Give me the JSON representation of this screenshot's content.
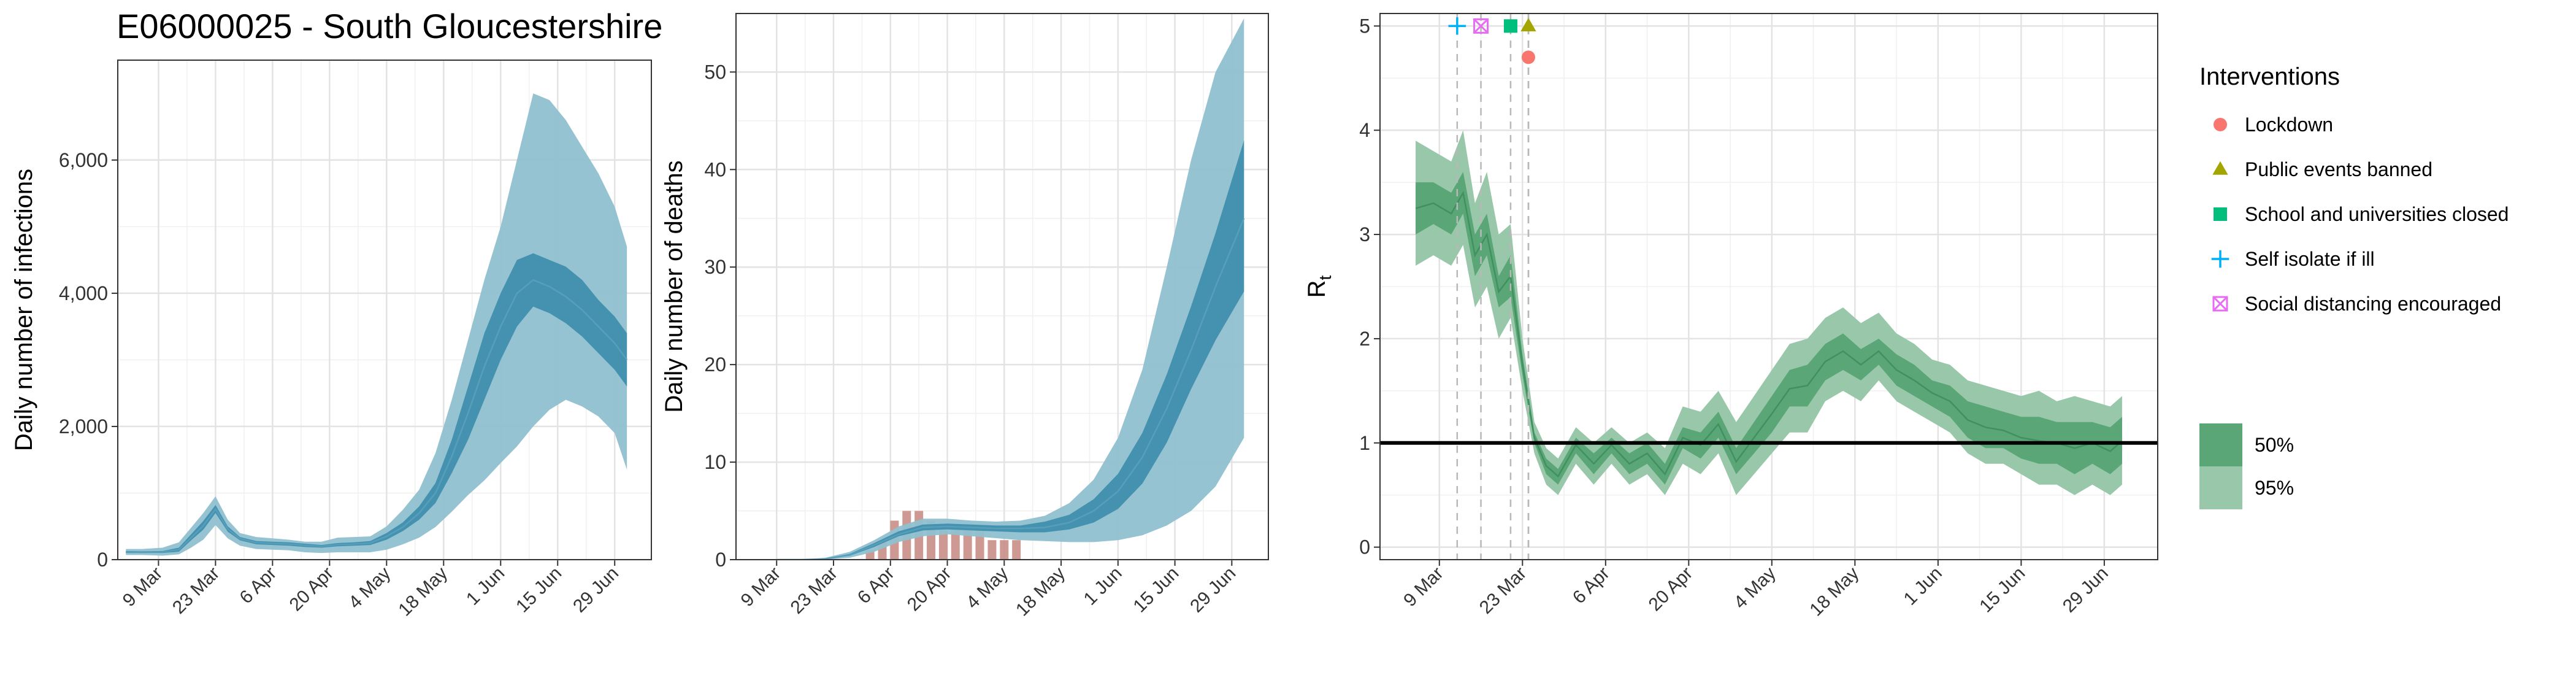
{
  "figure_title": "E06000025 - South Gloucestershire",
  "colors": {
    "band_outer_blue": "#8fc0d0",
    "band_inner_blue": "#3f8fad",
    "median_blue": "#5aa0bd",
    "deaths_bar": "#c98e86",
    "band_outer_green": "#98c8a9",
    "band_inner_green": "#5aa677",
    "median_green": "#3e8f5d",
    "lockdown": "#f8766d",
    "public_events": "#a3a500",
    "schools": "#00bf7d",
    "self_isolate": "#00b0f6",
    "social_distancing": "#e76bf3"
  },
  "chart_data": [
    {
      "type": "area",
      "ylabel": "Daily number of infections",
      "xlabel": "",
      "x_ticks": [
        "9 Mar",
        "23 Mar",
        "6 Apr",
        "20 Apr",
        "4 May",
        "18 May",
        "1 Jun",
        "15 Jun",
        "29 Jun"
      ],
      "x_range": [
        "2020-02-28",
        "2020-07-08"
      ],
      "y_ticks": [
        "0",
        "2,000",
        "4,000",
        "6,000"
      ],
      "y_tick_values": [
        0,
        2000,
        4000,
        6000
      ],
      "ylim": [
        0,
        7500
      ],
      "grid": true,
      "series": [
        {
          "x": [
            "2020-03-01",
            "2020-03-05",
            "2020-03-10",
            "2020-03-14",
            "2020-03-17",
            "2020-03-20",
            "2020-03-23",
            "2020-03-26",
            "2020-03-29",
            "2020-04-02",
            "2020-04-06",
            "2020-04-10",
            "2020-04-14",
            "2020-04-18",
            "2020-04-22",
            "2020-04-26",
            "2020-04-30",
            "2020-05-04",
            "2020-05-08",
            "2020-05-12",
            "2020-05-16",
            "2020-05-20",
            "2020-05-24",
            "2020-05-28",
            "2020-06-01",
            "2020-06-05",
            "2020-06-09",
            "2020-06-13",
            "2020-06-17",
            "2020-06-21",
            "2020-06-25",
            "2020-06-29",
            "2020-07-02"
          ],
          "lower95": [
            70,
            70,
            60,
            80,
            180,
            300,
            520,
            320,
            210,
            160,
            150,
            140,
            110,
            100,
            110,
            110,
            110,
            150,
            230,
            330,
            490,
            720,
            970,
            1190,
            1450,
            1700,
            2000,
            2250,
            2400,
            2300,
            2150,
            1900,
            1350
          ],
          "upper95": [
            160,
            160,
            180,
            260,
            480,
            700,
            950,
            600,
            400,
            340,
            320,
            300,
            270,
            270,
            330,
            340,
            350,
            500,
            750,
            1050,
            1600,
            2400,
            3300,
            4200,
            5000,
            6000,
            7000,
            6900,
            6600,
            6200,
            5800,
            5300,
            4700
          ],
          "lower50": [
            100,
            100,
            100,
            120,
            290,
            450,
            700,
            420,
            290,
            230,
            220,
            210,
            190,
            180,
            200,
            210,
            220,
            300,
            430,
            600,
            850,
            1300,
            1800,
            2400,
            3000,
            3500,
            3800,
            3700,
            3550,
            3350,
            3100,
            2850,
            2600
          ],
          "upper50": [
            130,
            125,
            130,
            180,
            380,
            580,
            820,
            500,
            340,
            280,
            270,
            260,
            240,
            220,
            250,
            260,
            280,
            400,
            560,
            800,
            1150,
            1800,
            2600,
            3400,
            4000,
            4500,
            4600,
            4500,
            4400,
            4200,
            3900,
            3650,
            3400
          ],
          "median": [
            115,
            112,
            115,
            150,
            330,
            510,
            760,
            460,
            315,
            255,
            245,
            235,
            215,
            200,
            225,
            235,
            250,
            350,
            490,
            700,
            1000,
            1550,
            2200,
            2900,
            3500,
            4000,
            4200,
            4100,
            3950,
            3750,
            3500,
            3250,
            3000
          ]
        }
      ]
    },
    {
      "type": "area",
      "ylabel": "Daily number of deaths",
      "xlabel": "",
      "x_ticks": [
        "9 Mar",
        "23 Mar",
        "6 Apr",
        "20 Apr",
        "4 May",
        "18 May",
        "1 Jun",
        "15 Jun",
        "29 Jun"
      ],
      "x_range": [
        "2020-02-28",
        "2020-07-08"
      ],
      "y_ticks": [
        "0",
        "10",
        "20",
        "30",
        "40",
        "50"
      ],
      "y_tick_values": [
        0,
        10,
        20,
        30,
        40,
        50
      ],
      "ylim": [
        0,
        56
      ],
      "grid": true,
      "bars": {
        "x": [
          "2020-04-01",
          "2020-04-04",
          "2020-04-07",
          "2020-04-10",
          "2020-04-13",
          "2020-04-16",
          "2020-04-19",
          "2020-04-22",
          "2020-04-25",
          "2020-04-28",
          "2020-05-01",
          "2020-05-04",
          "2020-05-07"
        ],
        "values": [
          1,
          2,
          4,
          5,
          5,
          4,
          3,
          3,
          3,
          3,
          2,
          2,
          2
        ]
      },
      "series": [
        {
          "x": [
            "2020-03-09",
            "2020-03-15",
            "2020-03-21",
            "2020-03-27",
            "2020-04-02",
            "2020-04-08",
            "2020-04-14",
            "2020-04-20",
            "2020-04-26",
            "2020-05-02",
            "2020-05-08",
            "2020-05-14",
            "2020-05-20",
            "2020-05-26",
            "2020-06-01",
            "2020-06-07",
            "2020-06-13",
            "2020-06-19",
            "2020-06-25",
            "2020-07-02"
          ],
          "lower95": [
            0,
            0,
            0,
            0.2,
            0.8,
            1.8,
            2.4,
            2.6,
            2.4,
            2.2,
            2.0,
            1.9,
            1.8,
            1.8,
            2.0,
            2.5,
            3.5,
            5,
            7.5,
            12.5
          ],
          "upper95": [
            0,
            0,
            0.2,
            0.8,
            2.0,
            3.4,
            4.2,
            4.2,
            4.0,
            3.9,
            4.0,
            4.5,
            5.8,
            8.2,
            12.5,
            19.5,
            30,
            41,
            50,
            55.5
          ],
          "lower50": [
            0,
            0,
            0.05,
            0.4,
            1.3,
            2.4,
            3.0,
            3.1,
            3.0,
            2.9,
            2.8,
            2.8,
            3.1,
            3.8,
            5.2,
            7.8,
            12,
            17.5,
            22.5,
            27.5
          ],
          "upper50": [
            0,
            0,
            0.1,
            0.6,
            1.7,
            2.9,
            3.6,
            3.7,
            3.6,
            3.5,
            3.5,
            3.9,
            4.6,
            6.2,
            8.8,
            13,
            19,
            26,
            33.5,
            43
          ],
          "median": [
            0,
            0,
            0.08,
            0.5,
            1.5,
            2.6,
            3.3,
            3.4,
            3.3,
            3.2,
            3.2,
            3.3,
            3.8,
            5.0,
            7.0,
            10.5,
            15.5,
            21.5,
            28,
            35
          ]
        }
      ]
    },
    {
      "type": "area",
      "ylabel": "R",
      "ylabel_subscript": "t",
      "xlabel": "",
      "x_ticks": [
        "9 Mar",
        "23 Mar",
        "6 Apr",
        "20 Apr",
        "4 May",
        "18 May",
        "1 Jun",
        "15 Jun",
        "29 Jun"
      ],
      "x_range": [
        "2020-02-28",
        "2020-07-08"
      ],
      "y_ticks": [
        "0",
        "1",
        "2",
        "3",
        "4",
        "5"
      ],
      "y_tick_values": [
        0,
        1,
        2,
        3,
        4,
        5
      ],
      "ylim": [
        -0.12,
        5.12
      ],
      "grid": true,
      "reference_line": 1,
      "series": [
        {
          "x": [
            "2020-03-05",
            "2020-03-08",
            "2020-03-11",
            "2020-03-13",
            "2020-03-15",
            "2020-03-17",
            "2020-03-19",
            "2020-03-21",
            "2020-03-23",
            "2020-03-25",
            "2020-03-27",
            "2020-03-29",
            "2020-04-01",
            "2020-04-04",
            "2020-04-07",
            "2020-04-10",
            "2020-04-13",
            "2020-04-16",
            "2020-04-19",
            "2020-04-22",
            "2020-04-25",
            "2020-04-28",
            "2020-05-01",
            "2020-05-04",
            "2020-05-07",
            "2020-05-10",
            "2020-05-13",
            "2020-05-16",
            "2020-05-19",
            "2020-05-22",
            "2020-05-25",
            "2020-05-28",
            "2020-05-31",
            "2020-06-03",
            "2020-06-06",
            "2020-06-09",
            "2020-06-12",
            "2020-06-15",
            "2020-06-18",
            "2020-06-21",
            "2020-06-24",
            "2020-06-27",
            "2020-06-30",
            "2020-07-02"
          ],
          "lower95": [
            2.7,
            2.8,
            2.7,
            2.9,
            2.3,
            2.5,
            2.0,
            2.2,
            1.5,
            0.9,
            0.6,
            0.5,
            0.8,
            0.6,
            0.8,
            0.6,
            0.7,
            0.5,
            0.8,
            0.7,
            0.9,
            0.5,
            0.7,
            0.9,
            1.1,
            1.1,
            1.4,
            1.5,
            1.4,
            1.6,
            1.4,
            1.3,
            1.2,
            1.1,
            0.9,
            0.8,
            0.8,
            0.7,
            0.6,
            0.6,
            0.5,
            0.6,
            0.5,
            0.6
          ],
          "upper95": [
            3.9,
            3.8,
            3.7,
            4.0,
            3.3,
            3.6,
            3.0,
            3.1,
            2.0,
            1.2,
            0.95,
            0.85,
            1.15,
            1.0,
            1.15,
            1.0,
            1.1,
            0.95,
            1.35,
            1.3,
            1.5,
            1.2,
            1.45,
            1.7,
            1.95,
            2.0,
            2.2,
            2.3,
            2.15,
            2.25,
            2.05,
            1.95,
            1.8,
            1.75,
            1.6,
            1.55,
            1.5,
            1.45,
            1.5,
            1.4,
            1.45,
            1.4,
            1.35,
            1.45
          ],
          "lower50": [
            3.0,
            3.1,
            3.0,
            3.2,
            2.6,
            2.8,
            2.3,
            2.4,
            1.65,
            1.0,
            0.7,
            0.6,
            0.9,
            0.7,
            0.9,
            0.7,
            0.8,
            0.6,
            0.95,
            0.85,
            1.05,
            0.7,
            0.9,
            1.1,
            1.35,
            1.35,
            1.6,
            1.7,
            1.6,
            1.75,
            1.55,
            1.45,
            1.35,
            1.25,
            1.05,
            0.95,
            0.95,
            0.85,
            0.8,
            0.8,
            0.7,
            0.8,
            0.7,
            0.8
          ],
          "upper50": [
            3.5,
            3.5,
            3.4,
            3.6,
            3.0,
            3.2,
            2.6,
            2.8,
            1.85,
            1.1,
            0.85,
            0.75,
            1.05,
            0.9,
            1.05,
            0.9,
            1.0,
            0.8,
            1.15,
            1.1,
            1.3,
            0.95,
            1.2,
            1.45,
            1.7,
            1.75,
            1.95,
            2.05,
            1.9,
            2.0,
            1.85,
            1.75,
            1.6,
            1.55,
            1.4,
            1.35,
            1.3,
            1.25,
            1.25,
            1.2,
            1.2,
            1.2,
            1.15,
            1.25
          ],
          "median": [
            3.25,
            3.3,
            3.2,
            3.4,
            2.8,
            3.0,
            2.45,
            2.6,
            1.75,
            1.05,
            0.78,
            0.68,
            0.98,
            0.8,
            0.98,
            0.8,
            0.9,
            0.7,
            1.05,
            0.98,
            1.18,
            0.82,
            1.05,
            1.28,
            1.52,
            1.55,
            1.78,
            1.88,
            1.75,
            1.88,
            1.7,
            1.6,
            1.48,
            1.4,
            1.22,
            1.15,
            1.12,
            1.05,
            1.02,
            1.0,
            0.95,
            1.0,
            0.92,
            1.02
          ]
        }
      ],
      "interventions": [
        {
          "name": "Lockdown",
          "date": "2020-03-24",
          "value": 4.7,
          "shape": "circle",
          "color_key": "lockdown"
        },
        {
          "name": "Public events banned",
          "date": "2020-03-24",
          "value": 5.0,
          "shape": "triangle",
          "color_key": "public_events"
        },
        {
          "name": "School and universities closed",
          "date": "2020-03-21",
          "value": 5.0,
          "shape": "square",
          "color_key": "schools"
        },
        {
          "name": "Self isolate if ill",
          "date": "2020-03-12",
          "value": 5.0,
          "shape": "plus",
          "color_key": "self_isolate"
        },
        {
          "name": "Social distancing encouraged",
          "date": "2020-03-16",
          "value": 5.0,
          "shape": "boxx",
          "color_key": "social_distancing"
        }
      ]
    }
  ],
  "legend": {
    "interventions_title": "Interventions",
    "interventions": [
      {
        "label": "Lockdown",
        "shape": "circle",
        "color_key": "lockdown"
      },
      {
        "label": "Public events banned",
        "shape": "triangle",
        "color_key": "public_events"
      },
      {
        "label": "School and universities closed",
        "shape": "square",
        "color_key": "schools"
      },
      {
        "label": "Self isolate if ill",
        "shape": "plus",
        "color_key": "self_isolate"
      },
      {
        "label": "Social distancing encouraged",
        "shape": "boxx",
        "color_key": "social_distancing"
      }
    ],
    "bands": [
      {
        "label": "50%",
        "color_key": "band_inner_green"
      },
      {
        "label": "95%",
        "color_key": "band_outer_green"
      }
    ]
  }
}
